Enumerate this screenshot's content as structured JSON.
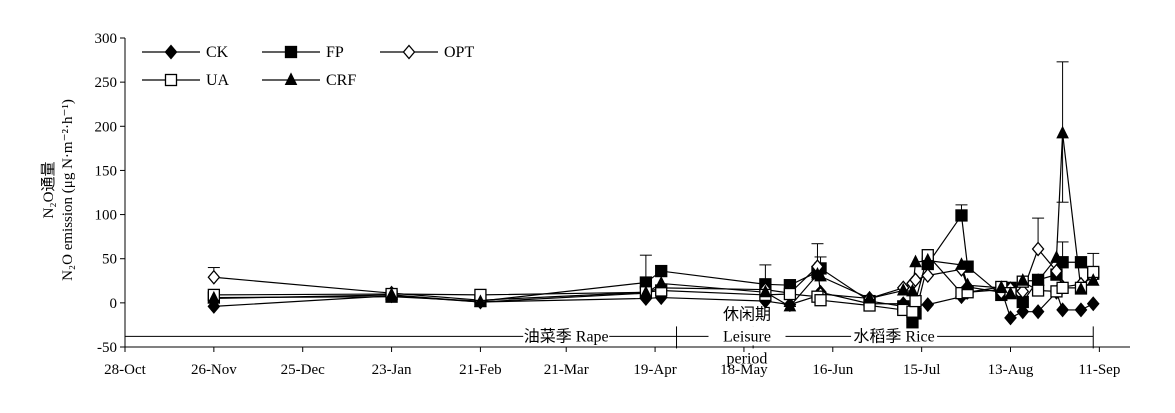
{
  "chart_data": {
    "type": "line",
    "ylabel_line1": "N₂O通量",
    "ylabel_line2": "N₂O emission (μg N·m⁻²·h⁻¹)",
    "ylim": [
      -50,
      300
    ],
    "yticks": [
      -50,
      0,
      50,
      100,
      150,
      200,
      250,
      300
    ],
    "xticks": [
      {
        "label": "28-Oct",
        "x": 0
      },
      {
        "label": "26-Nov",
        "x": 29
      },
      {
        "label": "25-Dec",
        "x": 58
      },
      {
        "label": "23-Jan",
        "x": 87
      },
      {
        "label": "21-Feb",
        "x": 116
      },
      {
        "label": "21-Mar",
        "x": 144
      },
      {
        "label": "19-Apr",
        "x": 173
      },
      {
        "label": "18-May",
        "x": 202
      },
      {
        "label": "16-Jun",
        "x": 231
      },
      {
        "label": "15-Jul",
        "x": 260
      },
      {
        "label": "13-Aug",
        "x": 289
      },
      {
        "label": "11-Sep",
        "x": 318
      }
    ],
    "xlim": [
      0,
      328
    ],
    "season_labels": [
      {
        "text": "油菜季 Rape",
        "x": 144
      },
      {
        "text": "休闲期",
        "x": 203
      },
      {
        "text": "Leisure",
        "x": 203
      },
      {
        "text": "period",
        "x": 203
      },
      {
        "text": "水稻季 Rice",
        "x": 251
      }
    ],
    "season_bounds": [
      0,
      180,
      205,
      316
    ],
    "series": [
      {
        "name": "CK",
        "marker": "filled-diamond",
        "x": [
          29,
          87,
          116,
          170,
          175,
          209,
          217,
          226,
          227,
          243,
          254,
          257,
          258,
          262,
          273,
          275,
          286,
          289,
          293,
          298,
          304,
          306,
          312,
          316
        ],
        "y": [
          -4,
          8,
          1,
          5,
          6,
          2,
          -2,
          8,
          12,
          -1,
          -1,
          -5,
          -3,
          -2,
          7,
          12,
          15,
          -17,
          -10,
          -10,
          12,
          -8,
          -8,
          -1
        ]
      },
      {
        "name": "FP",
        "marker": "filled-square",
        "x": [
          29,
          87,
          116,
          170,
          175,
          209,
          217,
          226,
          227,
          243,
          254,
          257,
          258,
          262,
          273,
          275,
          286,
          289,
          293,
          298,
          304,
          306,
          312,
          316
        ],
        "y": [
          6,
          7,
          2,
          23,
          36,
          21,
          20,
          35,
          39,
          2,
          -4,
          -22,
          -12,
          44,
          99,
          41,
          9,
          17,
          1,
          26,
          32,
          46,
          46,
          33
        ]
      },
      {
        "name": "OPT",
        "marker": "open-diamond",
        "x": [
          29,
          87,
          116,
          170,
          175,
          209,
          217,
          226,
          227,
          243,
          254,
          257,
          258,
          262,
          273,
          275,
          286,
          289,
          293,
          298,
          304,
          306,
          312,
          316
        ],
        "y": [
          29,
          11,
          3,
          12,
          17,
          15,
          11,
          41,
          10,
          5,
          17,
          22,
          26,
          31,
          38,
          18,
          12,
          16,
          13,
          61,
          36,
          18,
          21,
          29
        ]
      },
      {
        "name": "UA",
        "marker": "open-square",
        "x": [
          29,
          87,
          116,
          170,
          175,
          209,
          217,
          226,
          227,
          243,
          254,
          257,
          258,
          262,
          273,
          275,
          286,
          289,
          293,
          298,
          304,
          306,
          312,
          316
        ],
        "y": [
          9,
          10,
          9,
          12,
          14,
          9,
          10,
          7,
          3,
          -3,
          -8,
          -10,
          2,
          54,
          11,
          12,
          18,
          11,
          24,
          14,
          13,
          17,
          17,
          35
        ]
      },
      {
        "name": "CRF",
        "marker": "filled-triangle",
        "x": [
          29,
          87,
          116,
          170,
          175,
          209,
          217,
          226,
          227,
          243,
          254,
          257,
          258,
          262,
          273,
          275,
          286,
          289,
          293,
          298,
          304,
          306,
          312,
          316
        ],
        "y": [
          5,
          9,
          1,
          11,
          22,
          12,
          -4,
          32,
          30,
          5,
          14,
          13,
          46,
          48,
          43,
          20,
          17,
          10,
          25,
          25,
          51,
          192,
          15,
          25
        ]
      }
    ],
    "error_bars": [
      {
        "x": 29,
        "y": 29,
        "upper": 40
      },
      {
        "x": 170,
        "y": 23,
        "upper": 54
      },
      {
        "x": 209,
        "y": 21,
        "upper": 43
      },
      {
        "x": 217,
        "y": 20,
        "upper": -4,
        "lower": -4
      },
      {
        "x": 226,
        "y": 41,
        "upper": 67
      },
      {
        "x": 227,
        "y": 35,
        "upper": 52
      },
      {
        "x": 257,
        "y": -22,
        "upper": -22
      },
      {
        "x": 262,
        "y": 48,
        "upper": 52
      },
      {
        "x": 273,
        "y": 99,
        "upper": 111
      },
      {
        "x": 298,
        "y": 61,
        "upper": 96
      },
      {
        "x": 306,
        "y": 192,
        "upper": 273,
        "lower": 114
      },
      {
        "x": 306,
        "y": 46,
        "upper": 69
      },
      {
        "x": 316,
        "y": 35,
        "upper": 56
      }
    ],
    "legend": [
      {
        "name": "CK",
        "marker": "filled-diamond"
      },
      {
        "name": "FP",
        "marker": "filled-square"
      },
      {
        "name": "OPT",
        "marker": "open-diamond"
      },
      {
        "name": "UA",
        "marker": "open-square"
      },
      {
        "name": "CRF",
        "marker": "filled-triangle"
      }
    ],
    "legend_position": "top-left"
  }
}
